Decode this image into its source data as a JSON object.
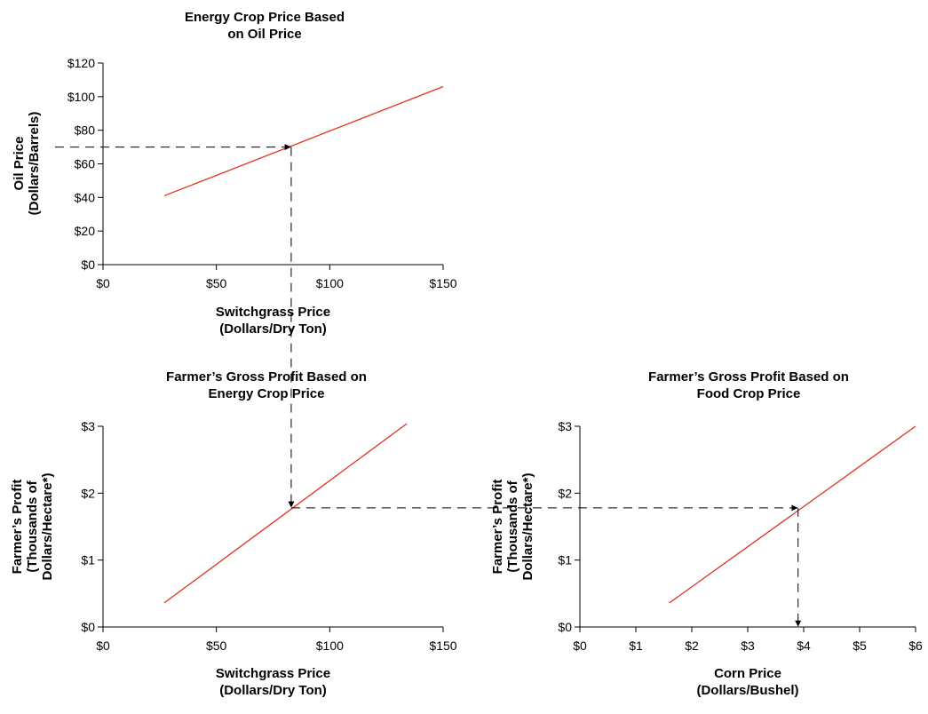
{
  "chart_data": [
    {
      "type": "line",
      "title": [
        "Energy Crop Price Based",
        "on Oil Price"
      ],
      "xlabel": [
        "Switchgrass Price",
        "(Dollars/Dry Ton)"
      ],
      "ylabel": [
        "Oil Price",
        "(Dollars/Barrels)"
      ],
      "xlim": [
        0,
        150
      ],
      "ylim": [
        0,
        120
      ],
      "x_ticks": [
        0,
        50,
        100,
        150
      ],
      "x_tick_labels": [
        "$0",
        "$50",
        "$100",
        "$150"
      ],
      "y_ticks": [
        0,
        20,
        40,
        60,
        80,
        100,
        120
      ],
      "y_tick_labels": [
        "$0",
        "$20",
        "$40",
        "$60",
        "$80",
        "$100",
        "$120"
      ],
      "series": [
        {
          "x": [
            27,
            150
          ],
          "y": [
            41,
            106
          ],
          "color": "#e0301e"
        }
      ],
      "guide_point": {
        "x": 83,
        "y": 70
      }
    },
    {
      "type": "line",
      "title": [
        "Farmer’s Gross Profit Based on",
        "Energy Crop Price"
      ],
      "xlabel": [
        "Switchgrass Price",
        "(Dollars/Dry Ton)"
      ],
      "ylabel": [
        "Farmer’s Profit",
        "(Thousands of",
        "Dollars/Hectare*)"
      ],
      "xlim": [
        0,
        150
      ],
      "ylim": [
        0,
        3
      ],
      "x_ticks": [
        0,
        50,
        100,
        150
      ],
      "x_tick_labels": [
        "$0",
        "$50",
        "$100",
        "$150"
      ],
      "y_ticks": [
        0,
        1,
        2,
        3
      ],
      "y_tick_labels": [
        "$0",
        "$1",
        "$2",
        "$3"
      ],
      "series": [
        {
          "x": [
            27,
            134
          ],
          "y": [
            0.36,
            3.04
          ],
          "color": "#e0301e"
        }
      ],
      "guide_point": {
        "x": 83,
        "y": 1.78
      }
    },
    {
      "type": "line",
      "title": [
        "Farmer’s Gross Profit Based on",
        "Food Crop Price"
      ],
      "xlabel": [
        "Corn Price",
        "(Dollars/Bushel)"
      ],
      "ylabel": [
        "Farmer’s Profit",
        "(Thousands of",
        "Dollars/Hectare*)"
      ],
      "xlim": [
        0,
        6
      ],
      "ylim": [
        0,
        3
      ],
      "x_ticks": [
        0,
        1,
        2,
        3,
        4,
        5,
        6
      ],
      "x_tick_labels": [
        "$0",
        "$1",
        "$2",
        "$3",
        "$4",
        "$5",
        "$6"
      ],
      "y_ticks": [
        0,
        1,
        2,
        3
      ],
      "y_tick_labels": [
        "$0",
        "$1",
        "$2",
        "$3"
      ],
      "series": [
        {
          "x": [
            1.6,
            6
          ],
          "y": [
            0.36,
            3.0
          ],
          "color": "#e0301e"
        }
      ],
      "guide_point": {
        "x": 3.9,
        "y": 1.78
      }
    }
  ]
}
